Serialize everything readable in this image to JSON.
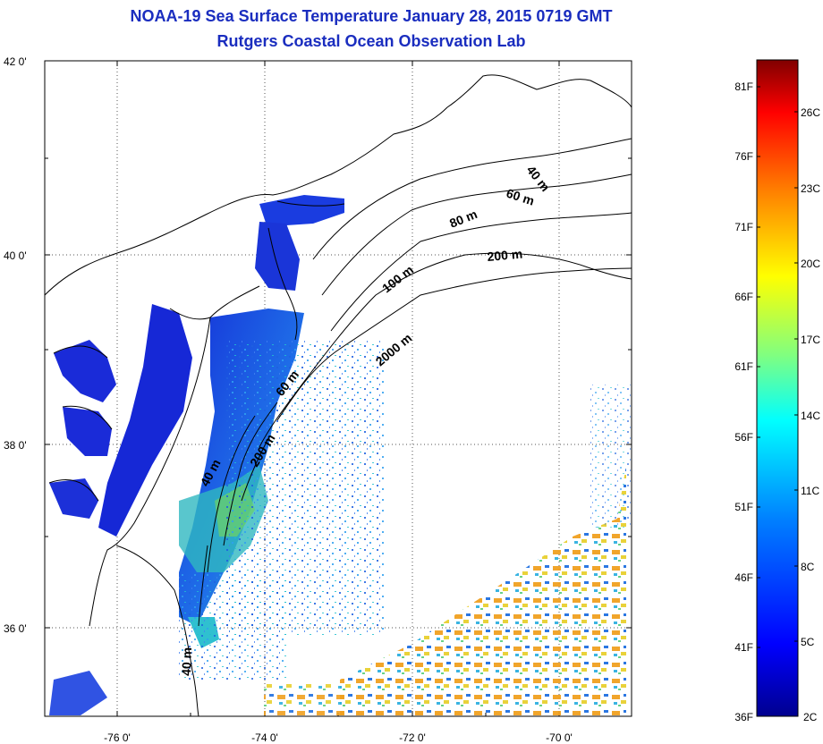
{
  "title": {
    "line1": "NOAA-19 Sea Surface Temperature January 28, 2015 0719 GMT",
    "line2": "Rutgers Coastal Ocean Observation Lab"
  },
  "map": {
    "lat_ticks": [
      "42 0'",
      "40 0'",
      "38 0'",
      "36 0'"
    ],
    "lon_ticks": [
      "-76 0'",
      "-74 0'",
      "-72 0'",
      "-70 0'"
    ],
    "contour_labels": [
      "40 m",
      "60 m",
      "80 m",
      "200 m",
      "100 m",
      "2000 m",
      "60 m",
      "40 m",
      "200 m",
      "40 m"
    ],
    "colors": {
      "land_background": "#ffffff",
      "coastline": "#000000",
      "cold_water": "#1a2bd8",
      "warm_patch": "#f0a020"
    }
  },
  "colorbar": {
    "fahrenheit_labels": [
      "81F",
      "76F",
      "71F",
      "66F",
      "61F",
      "56F",
      "51F",
      "46F",
      "41F",
      "36F"
    ],
    "celsius_labels": [
      "26C",
      "23C",
      "20C",
      "17C",
      "14C",
      "11C",
      "8C",
      "5C",
      "2C"
    ],
    "colormap": [
      "#00008f",
      "#0000ff",
      "#0080ff",
      "#00ffff",
      "#80ff80",
      "#ffff00",
      "#ff8000",
      "#ff0000",
      "#800000"
    ]
  }
}
